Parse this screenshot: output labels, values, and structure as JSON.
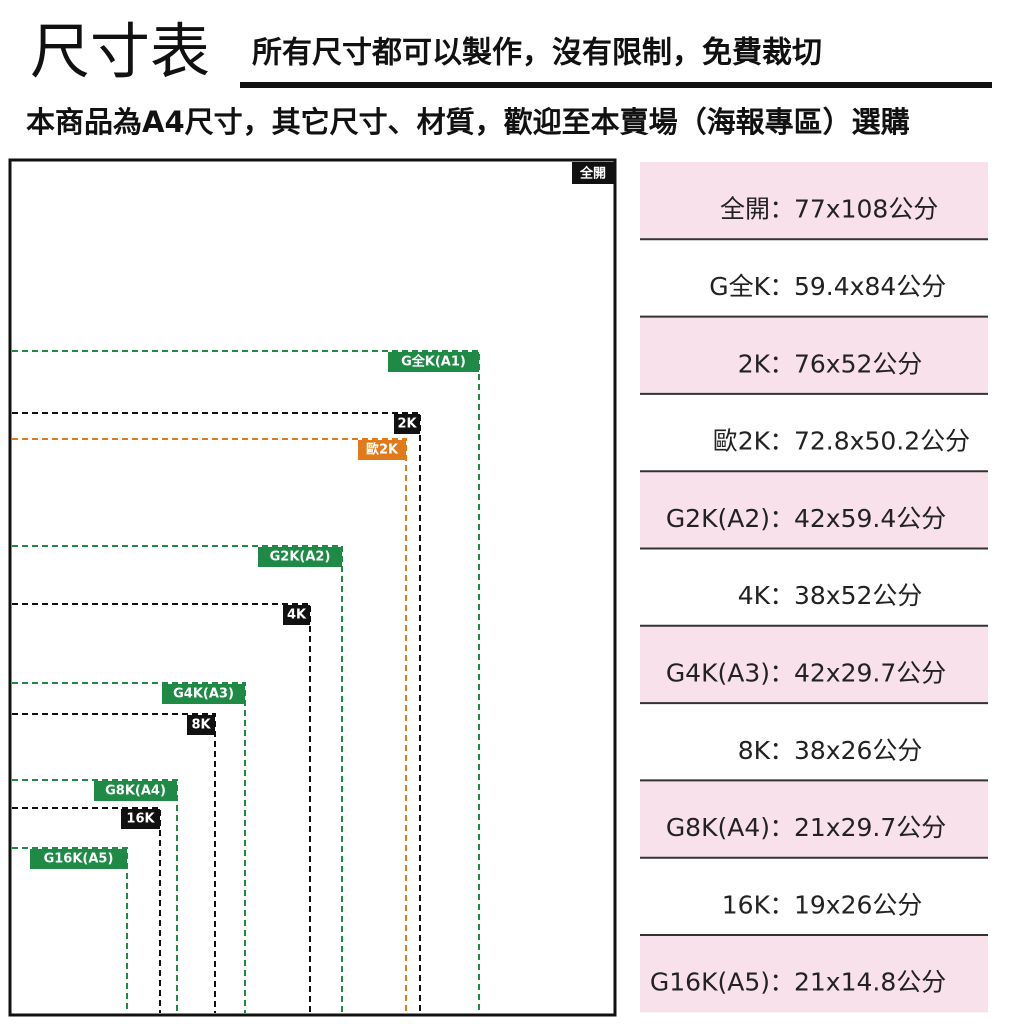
{
  "header": {
    "title": "尺寸表",
    "subtitle": "所有尺寸都可以製作，沒有限制，免費裁切",
    "description": "本商品為A4尺寸，其它尺寸、材質，歡迎至本賣場（海報專區）選購"
  },
  "diagram": {
    "outer_label": "全開",
    "frames": [
      {
        "label": "G全K(A1)",
        "color": "green"
      },
      {
        "label": "2K",
        "color": "black"
      },
      {
        "label": "歐2K",
        "color": "orange"
      },
      {
        "label": "G2K(A2)",
        "color": "green"
      },
      {
        "label": "4K",
        "color": "black"
      },
      {
        "label": "G4K(A3)",
        "color": "green"
      },
      {
        "label": "8K",
        "color": "black"
      },
      {
        "label": "G8K(A4)",
        "color": "green"
      },
      {
        "label": "16K",
        "color": "black"
      },
      {
        "label": "G16K(A5)",
        "color": "green"
      }
    ]
  },
  "table": {
    "rows": [
      {
        "size": "全開",
        "sep": "：",
        "dimensions": "77x108公分"
      },
      {
        "size": "G全K",
        "sep": "：",
        "dimensions": "59.4x84公分"
      },
      {
        "size": "2K",
        "sep": "：",
        "dimensions": "76x52公分"
      },
      {
        "size": "歐2K",
        "sep": "：",
        "dimensions": "72.8x50.2公分"
      },
      {
        "size": "G2K(A2)",
        "sep": "：",
        "dimensions": "42x59.4公分"
      },
      {
        "size": "4K",
        "sep": "：",
        "dimensions": "38x52公分"
      },
      {
        "size": "G4K(A3)",
        "sep": "：",
        "dimensions": "42x29.7公分"
      },
      {
        "size": "8K",
        "sep": "：",
        "dimensions": "38x26公分"
      },
      {
        "size": "G8K(A4)",
        "sep": "：",
        "dimensions": "21x29.7公分"
      },
      {
        "size": "16K",
        "sep": "：",
        "dimensions": "19x26公分"
      },
      {
        "size": "G16K(A5)",
        "sep": "：",
        "dimensions": "21x14.8公分"
      }
    ]
  }
}
